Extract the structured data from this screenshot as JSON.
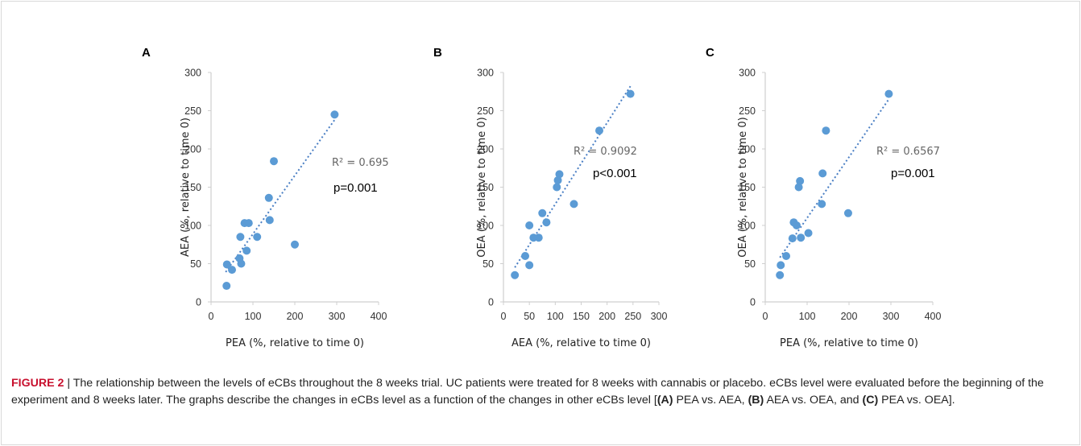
{
  "figure_label": "FIGURE 2",
  "caption_separator": " | ",
  "caption": {
    "part1": "The relationship between the levels of eCBs throughout the 8 weeks trial. UC patients were treated for 8 weeks with cannabis or placebo. eCBs level were evaluated before the beginning of the experiment and 8 weeks later. The graphs describe the changes in eCBs level as a function of the changes in other eCBs level [",
    "a_label": "(A)",
    "a_text": " PEA vs. AEA, ",
    "b_label": "(B)",
    "b_text": " AEA vs. OEA, and ",
    "c_label": "(C)",
    "c_text": " PEA vs. OEA]."
  },
  "chart_data": [
    {
      "type": "scatter",
      "panel": "A",
      "xlabel": "PEA (%, relative to time 0)",
      "ylabel": "AEA  (%,  relative to time 0)",
      "xlim": [
        0,
        400
      ],
      "ylim": [
        0,
        300
      ],
      "xticks": [
        0,
        100,
        200,
        300,
        400
      ],
      "yticks": [
        0,
        50,
        100,
        150,
        200,
        250,
        300
      ],
      "r2_text": "R² = 0.695",
      "p_text": "p=0.001",
      "trendline": {
        "x": [
          35,
          295
        ],
        "y": [
          39,
          238
        ]
      },
      "points": [
        {
          "x": 37,
          "y": 21
        },
        {
          "x": 38,
          "y": 49
        },
        {
          "x": 50,
          "y": 42
        },
        {
          "x": 68,
          "y": 57
        },
        {
          "x": 72,
          "y": 50
        },
        {
          "x": 70,
          "y": 85
        },
        {
          "x": 80,
          "y": 103
        },
        {
          "x": 90,
          "y": 103
        },
        {
          "x": 85,
          "y": 67
        },
        {
          "x": 110,
          "y": 85
        },
        {
          "x": 140,
          "y": 107
        },
        {
          "x": 138,
          "y": 136
        },
        {
          "x": 150,
          "y": 184
        },
        {
          "x": 200,
          "y": 75
        },
        {
          "x": 295,
          "y": 245
        }
      ]
    },
    {
      "type": "scatter",
      "panel": "B",
      "xlabel": "AEA (%, relative to time 0)",
      "ylabel": "OEA  (%,  relative to time 0)",
      "xlim": [
        0,
        300
      ],
      "ylim": [
        0,
        300
      ],
      "xticks": [
        0,
        50,
        100,
        150,
        200,
        250,
        300
      ],
      "yticks": [
        0,
        50,
        100,
        150,
        200,
        250,
        300
      ],
      "r2_text": "R² = 0.9092",
      "p_text": "p<0.001",
      "trendline": {
        "x": [
          22,
          245
        ],
        "y": [
          45,
          282
        ]
      },
      "points": [
        {
          "x": 22,
          "y": 35
        },
        {
          "x": 42,
          "y": 60
        },
        {
          "x": 50,
          "y": 48
        },
        {
          "x": 50,
          "y": 100
        },
        {
          "x": 58,
          "y": 84
        },
        {
          "x": 68,
          "y": 84
        },
        {
          "x": 75,
          "y": 116
        },
        {
          "x": 83,
          "y": 104
        },
        {
          "x": 103,
          "y": 150
        },
        {
          "x": 105,
          "y": 159
        },
        {
          "x": 108,
          "y": 167
        },
        {
          "x": 136,
          "y": 128
        },
        {
          "x": 185,
          "y": 224
        },
        {
          "x": 245,
          "y": 272
        }
      ]
    },
    {
      "type": "scatter",
      "panel": "C",
      "xlabel": "PEA (%, relative to time 0)",
      "ylabel": "OEA  (%,  relative to time 0)",
      "xlim": [
        0,
        400
      ],
      "ylim": [
        0,
        300
      ],
      "xticks": [
        0,
        100,
        200,
        300,
        400
      ],
      "yticks": [
        0,
        50,
        100,
        150,
        200,
        250,
        300
      ],
      "r2_text": "R² = 0.6567",
      "p_text": "p=0.001",
      "trendline": {
        "x": [
          35,
          295
        ],
        "y": [
          58,
          265
        ]
      },
      "points": [
        {
          "x": 35,
          "y": 35
        },
        {
          "x": 37,
          "y": 48
        },
        {
          "x": 50,
          "y": 60
        },
        {
          "x": 65,
          "y": 83
        },
        {
          "x": 68,
          "y": 104
        },
        {
          "x": 75,
          "y": 100
        },
        {
          "x": 80,
          "y": 150
        },
        {
          "x": 83,
          "y": 158
        },
        {
          "x": 85,
          "y": 84
        },
        {
          "x": 103,
          "y": 90
        },
        {
          "x": 135,
          "y": 128
        },
        {
          "x": 137,
          "y": 168
        },
        {
          "x": 145,
          "y": 224
        },
        {
          "x": 198,
          "y": 116
        },
        {
          "x": 295,
          "y": 272
        }
      ]
    }
  ]
}
